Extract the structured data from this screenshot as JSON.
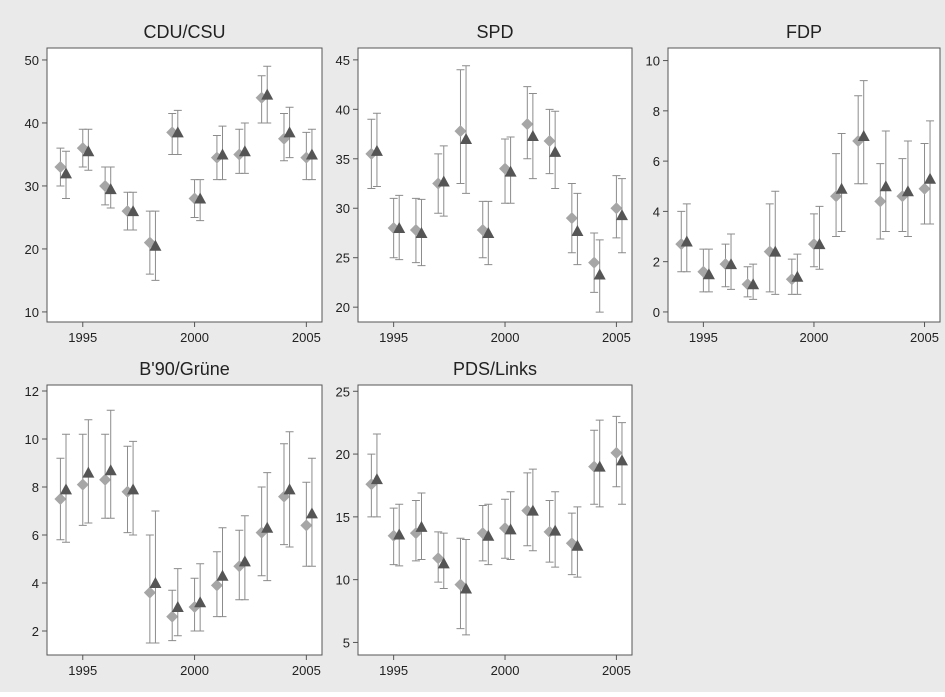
{
  "chart_data": [
    {
      "type": "scatter",
      "title": "CDU/CSU",
      "xlim": [
        1993.4,
        2005.7
      ],
      "xticks": [
        1995,
        2000,
        2005
      ],
      "ylim": [
        8.4,
        51.9
      ],
      "yticks": [
        10,
        20,
        30,
        40,
        50
      ],
      "series": [
        {
          "marker": "diamond",
          "color": "#a6a6a6",
          "x": [
            1994,
            1995,
            1996,
            1997,
            1998,
            1999,
            2000,
            2001,
            2002,
            2003,
            2004,
            2005
          ],
          "values": [
            33,
            36,
            30,
            26,
            21,
            38.5,
            28,
            34.5,
            35,
            44,
            37.5,
            34.5
          ],
          "low": [
            30,
            33,
            27,
            23,
            16,
            35,
            25,
            31,
            32,
            40,
            34,
            31
          ],
          "high": [
            36,
            39,
            33,
            29,
            26,
            41.5,
            31,
            38,
            39,
            47.5,
            41.5,
            38.5
          ]
        },
        {
          "marker": "triangle",
          "color": "#555555",
          "x": [
            1994.25,
            1995.25,
            1996.25,
            1997.25,
            1998.25,
            1999.25,
            2000.25,
            2001.25,
            2002.25,
            2003.25,
            2004.25,
            2005.25
          ],
          "values": [
            32,
            35.5,
            29.5,
            26,
            20.5,
            38.5,
            28,
            35,
            35.5,
            44.5,
            38.5,
            35
          ],
          "low": [
            28,
            32.5,
            26.5,
            23,
            15,
            35,
            24.5,
            31,
            32,
            40,
            34.5,
            31
          ],
          "high": [
            35.5,
            39,
            33,
            29,
            26,
            42,
            31,
            39.5,
            40,
            49,
            42.5,
            39
          ]
        }
      ]
    },
    {
      "type": "scatter",
      "title": "SPD",
      "xlim": [
        1993.4,
        2005.7
      ],
      "xticks": [
        1995,
        2000,
        2005
      ],
      "ylim": [
        18.5,
        46.2
      ],
      "yticks": [
        20,
        25,
        30,
        35,
        40,
        45
      ],
      "series": [
        {
          "marker": "diamond",
          "color": "#a6a6a6",
          "x": [
            1994,
            1995,
            1996,
            1997,
            1998,
            1999,
            2000,
            2001,
            2002,
            2003,
            2004,
            2005
          ],
          "values": [
            35.5,
            28,
            27.8,
            32.5,
            37.8,
            27.8,
            34,
            38.5,
            36.8,
            29,
            24.5,
            30
          ],
          "low": [
            32,
            25,
            24.5,
            29.5,
            32.5,
            25,
            30.5,
            35,
            33.5,
            25.5,
            21.5,
            27
          ],
          "high": [
            39,
            31,
            31,
            35.5,
            44,
            30.7,
            37,
            42.3,
            40,
            32.5,
            27.5,
            33.3
          ]
        },
        {
          "marker": "triangle",
          "color": "#555555",
          "x": [
            1994.25,
            1995.25,
            1996.25,
            1997.25,
            1998.25,
            1999.25,
            2000.25,
            2001.25,
            2002.25,
            2003.25,
            2004.25,
            2005.25
          ],
          "values": [
            35.8,
            28,
            27.5,
            32.7,
            37,
            27.5,
            33.7,
            37.3,
            35.7,
            27.7,
            23.3,
            29.3
          ],
          "low": [
            32.2,
            24.8,
            24.2,
            29.2,
            31.5,
            24.3,
            30.5,
            33,
            32,
            24.3,
            19.5,
            25.5
          ],
          "high": [
            39.6,
            31.3,
            30.9,
            36.3,
            44.4,
            30.7,
            37.2,
            41.6,
            39.8,
            31.5,
            26.8,
            33
          ]
        }
      ]
    },
    {
      "type": "scatter",
      "title": "FDP",
      "xlim": [
        1993.4,
        2005.7
      ],
      "xticks": [
        1995,
        2000,
        2005
      ],
      "ylim": [
        -0.4,
        10.5
      ],
      "yticks": [
        0,
        2,
        4,
        6,
        8,
        10
      ],
      "series": [
        {
          "marker": "diamond",
          "color": "#a6a6a6",
          "x": [
            1994,
            1995,
            1996,
            1997,
            1998,
            1999,
            2000,
            2001,
            2002,
            2003,
            2004,
            2005
          ],
          "values": [
            2.7,
            1.6,
            1.9,
            1.1,
            2.4,
            1.3,
            2.7,
            4.6,
            6.8,
            4.4,
            4.6,
            4.9
          ],
          "low": [
            1.6,
            0.8,
            1,
            0.6,
            0.8,
            0.7,
            1.8,
            3,
            5.1,
            2.9,
            3.2,
            3.5
          ],
          "high": [
            4,
            2.5,
            2.7,
            1.8,
            4.3,
            2.1,
            3.9,
            6.3,
            8.6,
            5.9,
            6.1,
            6.7
          ]
        },
        {
          "marker": "triangle",
          "color": "#555555",
          "x": [
            1994.25,
            1995.25,
            1996.25,
            1997.25,
            1998.25,
            1999.25,
            2000.25,
            2001.25,
            2002.25,
            2003.25,
            2004.25,
            2005.25
          ],
          "values": [
            2.8,
            1.5,
            1.9,
            1.1,
            2.4,
            1.4,
            2.7,
            4.9,
            7,
            5,
            4.8,
            5.3
          ],
          "low": [
            1.6,
            0.8,
            0.9,
            0.5,
            0.7,
            0.7,
            1.7,
            3.2,
            5.1,
            3.2,
            3,
            3.5
          ],
          "high": [
            4.3,
            2.5,
            3.1,
            1.9,
            4.8,
            2.3,
            4.2,
            7.1,
            9.2,
            7.2,
            6.8,
            7.6
          ]
        }
      ]
    },
    {
      "type": "scatter",
      "title": "B'90/Grüne",
      "xlim": [
        1993.4,
        2005.7
      ],
      "xticks": [
        1995,
        2000,
        2005
      ],
      "ylim": [
        1,
        12.25
      ],
      "yticks": [
        2,
        4,
        6,
        8,
        10,
        12
      ],
      "series": [
        {
          "marker": "diamond",
          "color": "#a6a6a6",
          "x": [
            1994,
            1995,
            1996,
            1997,
            1998,
            1999,
            2000,
            2001,
            2002,
            2003,
            2004,
            2005
          ],
          "values": [
            7.5,
            8.1,
            8.3,
            7.8,
            3.6,
            2.6,
            3,
            3.9,
            4.7,
            6.1,
            7.6,
            6.4
          ],
          "low": [
            5.8,
            6.4,
            6.7,
            6.1,
            1.5,
            1.6,
            2,
            2.6,
            3.3,
            4.3,
            5.6,
            4.7
          ],
          "high": [
            9.2,
            10.2,
            10.2,
            9.7,
            6,
            3.7,
            4.2,
            5.3,
            6.2,
            8,
            9.8,
            8.2
          ]
        },
        {
          "marker": "triangle",
          "color": "#555555",
          "x": [
            1994.25,
            1995.25,
            1996.25,
            1997.25,
            1998.25,
            1999.25,
            2000.25,
            2001.25,
            2002.25,
            2003.25,
            2004.25,
            2005.25
          ],
          "values": [
            7.9,
            8.6,
            8.7,
            7.9,
            4,
            3,
            3.2,
            4.3,
            4.9,
            6.3,
            7.9,
            6.9
          ],
          "low": [
            5.7,
            6.5,
            6.7,
            6,
            1.5,
            1.8,
            2,
            2.6,
            3.3,
            4.1,
            5.5,
            4.7
          ],
          "high": [
            10.2,
            10.8,
            11.2,
            9.9,
            7,
            4.6,
            4.8,
            6.3,
            6.8,
            8.6,
            10.3,
            9.2
          ]
        }
      ]
    },
    {
      "type": "scatter",
      "title": "PDS/Links",
      "xlim": [
        1993.4,
        2005.7
      ],
      "xticks": [
        1995,
        2000,
        2005
      ],
      "ylim": [
        4,
        25.5
      ],
      "yticks": [
        5,
        10,
        15,
        20,
        25
      ],
      "series": [
        {
          "marker": "diamond",
          "color": "#a6a6a6",
          "x": [
            1994,
            1995,
            1996,
            1997,
            1998,
            1999,
            2000,
            2001,
            2002,
            2003,
            2004,
            2005
          ],
          "values": [
            17.6,
            13.5,
            13.7,
            11.7,
            9.6,
            13.7,
            14.1,
            15.5,
            13.8,
            12.9,
            19,
            20.1
          ],
          "low": [
            15,
            11.2,
            11.5,
            9.8,
            6.1,
            11.5,
            11.7,
            12.7,
            11.4,
            10.4,
            16,
            17.4
          ],
          "high": [
            20,
            15.7,
            16.3,
            13.8,
            13.3,
            15.9,
            16.4,
            18.5,
            16.3,
            15.3,
            21.9,
            23
          ]
        },
        {
          "marker": "triangle",
          "color": "#555555",
          "x": [
            1994.25,
            1995.25,
            1996.25,
            1997.25,
            1998.25,
            1999.25,
            2000.25,
            2001.25,
            2002.25,
            2003.25,
            2004.25,
            2005.25
          ],
          "values": [
            18,
            13.6,
            14.2,
            11.3,
            9.3,
            13.5,
            14,
            15.5,
            13.9,
            12.7,
            19,
            19.5
          ],
          "low": [
            15,
            11.1,
            11.6,
            9.3,
            5.6,
            11.2,
            11.6,
            12.3,
            11,
            10.2,
            15.8,
            16
          ],
          "high": [
            21.6,
            16,
            16.9,
            13.7,
            13.2,
            16,
            17,
            18.8,
            17,
            15.8,
            22.7,
            22.5
          ]
        }
      ]
    }
  ]
}
